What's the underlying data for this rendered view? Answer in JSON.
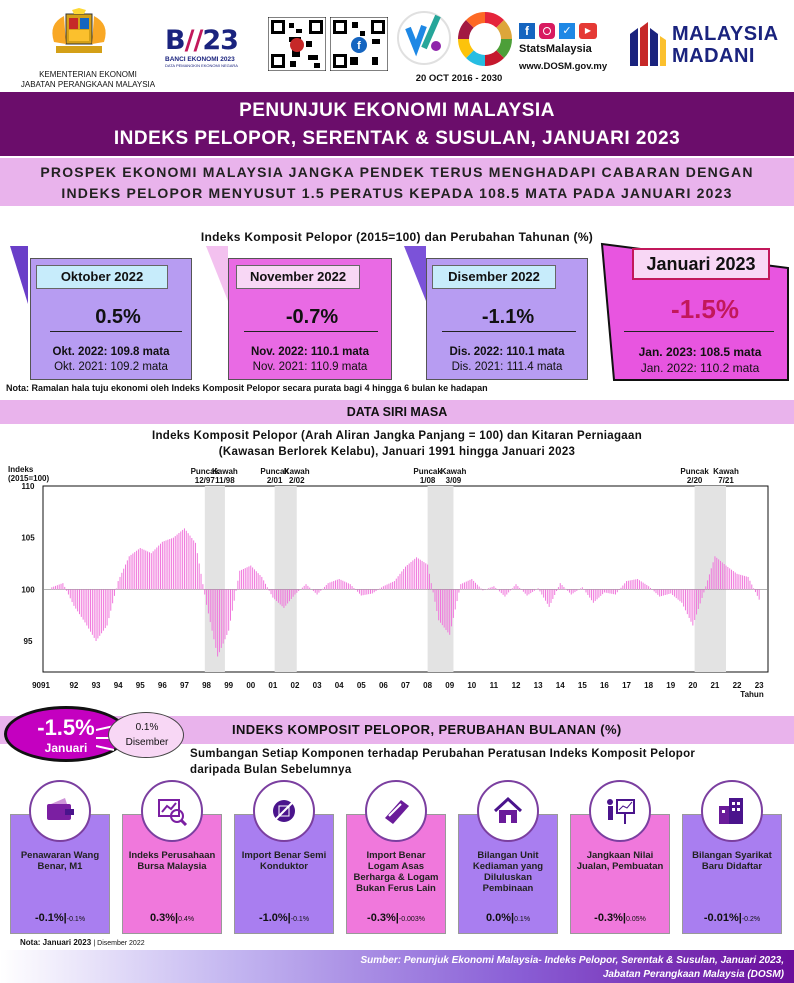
{
  "header": {
    "ministry_line1": "KEMENTERIAN EKONOMI",
    "ministry_line2": "JABATAN PERANGKAAN MALAYSIA",
    "census_logo": "BANCI EKONOMI 2023",
    "census_sub": "DATA PEMANGKIN EKONOMI NEGARA",
    "date_line": "20 OCT 2016 - 2030",
    "social_handle": "StatsMalaysia",
    "website": "www.DOSM.gov.my",
    "madani_line1": "MALAYSIA",
    "madani_line2": "MADANI"
  },
  "title": {
    "line1": "PENUNJUK EKONOMI MALAYSIA",
    "line2": "INDEKS PELOPOR, SERENTAK & SUSULAN, JANUARI 2023"
  },
  "headline": {
    "line1": "PROSPEK EKONOMI MALAYSIA JANGKA PENDEK TERUS MENGHADAPI CABARAN DENGAN",
    "line2": "INDEKS PELOPOR MENYUSUT 1.5 PERATUS KEPADA 108.5 MATA PADA JANUARI 2023"
  },
  "composite": {
    "title": "Indeks Komposit Pelopor (2015=100) dan Perubahan Tahunan (%)",
    "cards": [
      {
        "month": "Oktober 2022",
        "pct": "0.5%",
        "cur": "Okt. 2022: 109.8 mata",
        "prev": "Okt. 2021: 109.2 mata"
      },
      {
        "month": "November 2022",
        "pct": "-0.7%",
        "cur": "Nov. 2022: 110.1 mata",
        "prev": "Nov. 2021: 110.9 mata"
      },
      {
        "month": "Disember 2022",
        "pct": "-1.1%",
        "cur": "Dis. 2022: 110.1 mata",
        "prev": "Dis. 2021: 111.4 mata"
      },
      {
        "month": "Januari 2023",
        "pct": "-1.5%",
        "cur": "Jan. 2023: 108.5 mata",
        "prev": "Jan. 2022: 110.2 mata"
      }
    ],
    "note": "Nota: Ramalan hala tuju ekonomi oleh Indeks Komposit Pelopor secara purata bagi 4 hingga 6 bulan ke hadapan"
  },
  "timeseries": {
    "band": "DATA SIRI MASA",
    "title1": "Indeks Komposit Pelopor (Arah Aliran Jangka Panjang = 100) dan Kitaran Perniagaan",
    "title2": "(Kawasan Berlorek Kelabu), Januari 1991 hingga Januari 2023",
    "ylabel1": "Indeks",
    "ylabel2": "(2015=100)",
    "xlabel": "Tahun"
  },
  "chart_data": {
    "type": "bar",
    "ylim": [
      92,
      110
    ],
    "baseline": 100,
    "yticks": [
      "110",
      "105",
      "100",
      "95"
    ],
    "xticks": [
      "9091",
      "92",
      "93",
      "94",
      "95",
      "96",
      "97",
      "98",
      "99",
      "00",
      "01",
      "02",
      "03",
      "04",
      "05",
      "06",
      "07",
      "08",
      "09",
      "10",
      "11",
      "12",
      "13",
      "14",
      "15",
      "16",
      "17",
      "18",
      "19",
      "20",
      "21",
      "22",
      "23"
    ],
    "xlabel": "Tahun",
    "ylabel": "Indeks (2015=100)",
    "shaded_periods": [
      {
        "peak": "12/97",
        "trough": "11/98",
        "start": 1997.92,
        "end": 1998.83
      },
      {
        "peak": "2/01",
        "trough": "2/02",
        "start": 2001.08,
        "end": 2002.08
      },
      {
        "peak": "1/08",
        "trough": "3/09",
        "start": 2008.0,
        "end": 2009.17
      },
      {
        "peak": "2/20",
        "trough": "7/21",
        "start": 2020.08,
        "end": 2021.5
      }
    ],
    "annotations": [
      {
        "top": "Puncak",
        "bottom": "12/97"
      },
      {
        "top": "Kawah",
        "bottom": "11/98"
      },
      {
        "top": "Puncak",
        "bottom": "2/01"
      },
      {
        "top": "Kawah",
        "bottom": "2/02"
      },
      {
        "top": "Puncak",
        "bottom": "1/08"
      },
      {
        "top": "Kawah",
        "bottom": "3/09"
      },
      {
        "top": "Puncak",
        "bottom": "2/20"
      },
      {
        "top": "Kawah",
        "bottom": "7/21"
      }
    ],
    "series": [
      {
        "x": [
          1991.0,
          1991.5,
          1992.0,
          1992.5,
          1993.0,
          1993.5,
          1994.0,
          1994.5,
          1995.0,
          1995.5,
          1996.0,
          1996.5,
          1997.0,
          1997.5,
          1998.0,
          1998.5,
          1999.0,
          1999.5,
          2000.0,
          2000.5,
          2001.0,
          2001.5,
          2002.0,
          2002.5,
          2003.0,
          2003.5,
          2004.0,
          2004.5,
          2005.0,
          2005.5,
          2006.0,
          2006.5,
          2007.0,
          2007.5,
          2008.0,
          2008.5,
          2009.0,
          2009.5,
          2010.0,
          2010.5,
          2011.0,
          2011.5,
          2012.0,
          2012.5,
          2013.0,
          2013.5,
          2014.0,
          2014.5,
          2015.0,
          2015.5,
          2016.0,
          2016.5,
          2017.0,
          2017.5,
          2018.0,
          2018.5,
          2019.0,
          2019.5,
          2020.0,
          2020.5,
          2021.0,
          2021.5,
          2022.0,
          2022.5,
          2023.0
        ],
        "values": [
          100.2,
          100.6,
          98.4,
          96.8,
          95.0,
          96.5,
          100.8,
          103.2,
          104.0,
          103.5,
          104.6,
          105.0,
          105.9,
          104.5,
          98.5,
          93.5,
          96.0,
          101.8,
          102.3,
          101.2,
          99.2,
          98.2,
          99.5,
          100.5,
          99.5,
          100.6,
          101.0,
          100.5,
          99.4,
          99.6,
          100.3,
          100.8,
          102.2,
          103.1,
          102.4,
          97.0,
          95.6,
          100.5,
          101.0,
          99.9,
          100.3,
          99.3,
          100.5,
          99.4,
          100.1,
          98.3,
          100.6,
          99.5,
          100.2,
          98.7,
          99.7,
          99.5,
          100.8,
          101.0,
          100.3,
          99.3,
          99.6,
          98.7,
          96.5,
          99.7,
          103.2,
          102.3,
          101.5,
          101.2,
          99.0
        ]
      }
    ]
  },
  "monthly": {
    "big_pct": "-1.5%",
    "big_month": "Januari",
    "prev_pct": "0.1%",
    "prev_month": "Disember",
    "title": "INDEKS KOMPOSIT PELOPOR, PERUBAHAN BULANAN (%)",
    "desc1": "Sumbangan Setiap Komponen terhadap Perubahan Peratusan Indeks Komposit Pelopor",
    "desc2": "daripada Bulan Sebelumnya",
    "components": [
      {
        "icon": "wallet-icon",
        "label": "Penawaran Wang Benar, M1",
        "val": "-0.1%|",
        "prev": "-0.1%"
      },
      {
        "icon": "stock-analysis-icon",
        "label": "Indeks Perusahaan Bursa Malaysia",
        "val": "0.3%|",
        "prev": "0.4%"
      },
      {
        "icon": "semiconductor-icon",
        "label": "Import Benar Semi Konduktor",
        "val": "-1.0%|",
        "prev": "-0.1%"
      },
      {
        "icon": "metal-bar-icon",
        "label": "Import Benar Logam Asas Berharga & Logam Bukan Ferus Lain",
        "val": "-0.3%|",
        "prev": "-0.003%"
      },
      {
        "icon": "house-icon",
        "label": "Bilangan Unit Kediaman yang Diluluskan Pembinaan",
        "val": "0.0%|",
        "prev": "0.1%"
      },
      {
        "icon": "presenter-chart-icon",
        "label": "Jangkaan Nilai Jualan, Pembuatan",
        "val": "-0.3%|",
        "prev": "0.05%"
      },
      {
        "icon": "buildings-icon",
        "label": "Bilangan Syarikat Baru Didaftar",
        "val": "-0.01%|",
        "prev": "-0.2%"
      }
    ],
    "note": "Nota: Januari 2023",
    "note_prev": "| Disember 2022"
  },
  "footer": {
    "line1": "Sumber: Penunjuk Ekonomi Malaysia- Indeks Pelopor, Serentak & Susulan, Januari 2023,",
    "line2": "Jabatan Perangkaan Malaysia (DOSM)"
  },
  "colors": {
    "purple_dark": "#6b0d6b",
    "lavender": "#e9b3ec",
    "magenta": "#e855e0",
    "violet": "#a97ef0",
    "bar": "#f078dc"
  }
}
